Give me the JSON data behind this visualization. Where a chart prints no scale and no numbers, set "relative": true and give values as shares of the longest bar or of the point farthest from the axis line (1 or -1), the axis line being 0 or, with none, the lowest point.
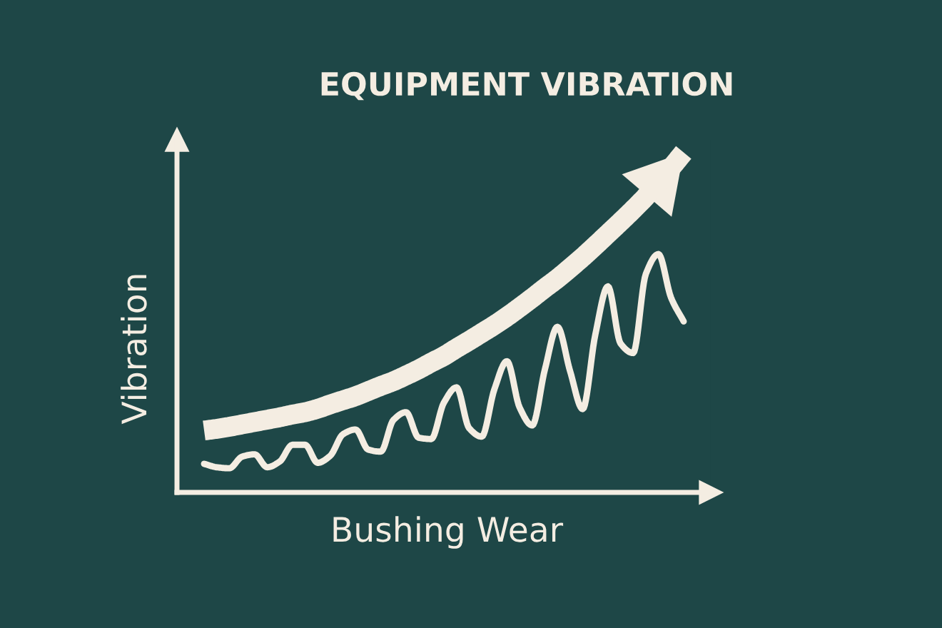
{
  "chart_data": {
    "type": "line",
    "title": "EQUIPMENT VIBRATION",
    "xlabel": "Bushing Wear",
    "ylabel": "Vibration",
    "relative": true,
    "categories": [
      null,
      null,
      null,
      null,
      null,
      null,
      null,
      null,
      null,
      null,
      null,
      null,
      null,
      null,
      null,
      null,
      null,
      null,
      null,
      null,
      null,
      null,
      null,
      null,
      null,
      null,
      null,
      null,
      null,
      null,
      null,
      null,
      null,
      null,
      null,
      null,
      null,
      null,
      null
    ],
    "series": [
      {
        "color": "#f4ede2",
        "values": [
          0.182,
          0.187,
          0.193,
          0.2,
          0.207,
          0.214,
          0.221,
          0.229,
          0.236,
          0.246,
          0.259,
          0.271,
          0.283,
          0.298,
          0.313,
          0.327,
          0.344,
          0.362,
          0.382,
          0.401,
          0.424,
          0.446,
          0.469,
          0.492,
          0.517,
          0.544,
          0.572,
          0.601,
          0.629,
          0.66,
          0.692,
          0.726,
          0.761,
          0.796,
          0.832,
          0.87,
          0.913,
          0.955,
          1.0
        ]
      },
      {
        "color": "#f4ede2",
        "values": [
          0.084,
          0.074,
          0.071,
          0.105,
          0.112,
          0.074,
          0.091,
          0.14,
          0.14,
          0.087,
          0.108,
          0.171,
          0.185,
          0.126,
          0.12,
          0.213,
          0.236,
          0.161,
          0.157,
          0.264,
          0.309,
          0.189,
          0.164,
          0.303,
          0.386,
          0.25,
          0.197,
          0.361,
          0.487,
          0.357,
          0.245,
          0.464,
          0.606,
          0.438,
          0.41,
          0.642,
          0.701,
          0.573,
          0.503
        ]
      }
    ]
  }
}
